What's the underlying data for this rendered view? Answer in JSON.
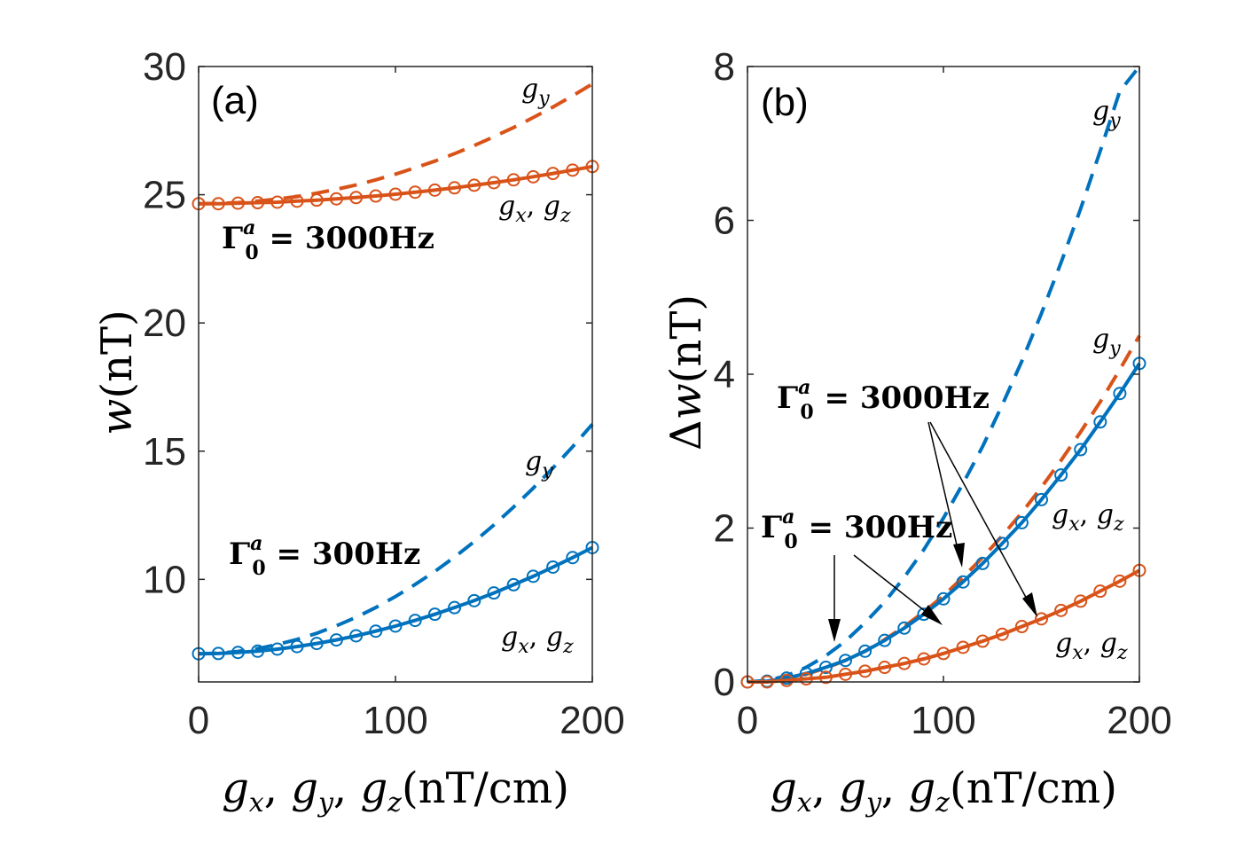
{
  "chart_data": [
    {
      "type": "line",
      "panel_label": "(a)",
      "xlabel": "g_x, g_y, g_z (nT/cm)",
      "ylabel": "w(nT)",
      "xlim": [
        0,
        200
      ],
      "ylim": [
        6,
        30
      ],
      "xticks": [
        0,
        100,
        200
      ],
      "yticks": [
        10,
        15,
        20,
        25,
        30
      ],
      "series": [
        {
          "group": "Γ0a = 3000Hz",
          "name": "g_y",
          "color": "#D95319",
          "style": "dashed",
          "x": [
            0,
            10,
            20,
            30,
            40,
            50,
            60,
            70,
            80,
            90,
            100,
            110,
            120,
            130,
            140,
            150,
            160,
            170,
            180,
            190,
            200
          ],
          "values": [
            24.65,
            24.66,
            24.69,
            24.75,
            24.83,
            24.93,
            25.06,
            25.21,
            25.38,
            25.58,
            25.8,
            26.05,
            26.31,
            26.6,
            26.92,
            27.26,
            27.62,
            28.01,
            28.42,
            28.86,
            29.32
          ]
        },
        {
          "group": "Γ0a = 3000Hz",
          "name": "g_x, g_z",
          "color": "#D95319",
          "style": "solid-markers",
          "x": [
            0,
            10,
            20,
            30,
            40,
            50,
            60,
            70,
            80,
            90,
            100,
            110,
            120,
            130,
            140,
            150,
            160,
            170,
            180,
            190,
            200
          ],
          "values": [
            24.65,
            24.65,
            24.67,
            24.69,
            24.71,
            24.75,
            24.79,
            24.84,
            24.89,
            24.95,
            25.02,
            25.1,
            25.18,
            25.27,
            25.37,
            25.47,
            25.58,
            25.7,
            25.83,
            25.96,
            26.1
          ]
        },
        {
          "group": "Γ0a = 300Hz",
          "name": "g_y",
          "color": "#0072BD",
          "style": "dashed",
          "x": [
            0,
            10,
            20,
            30,
            40,
            50,
            60,
            70,
            80,
            90,
            100,
            110,
            120,
            130,
            140,
            150,
            160,
            170,
            180,
            190,
            200
          ],
          "values": [
            7.1,
            7.12,
            7.19,
            7.3,
            7.46,
            7.66,
            7.9,
            8.19,
            8.52,
            8.9,
            9.33,
            9.8,
            10.31,
            10.87,
            11.47,
            12.12,
            12.82,
            13.56,
            14.34,
            15.17,
            16.05
          ]
        },
        {
          "group": "Γ0a = 300Hz",
          "name": "g_x, g_z",
          "color": "#0072BD",
          "style": "solid-markers",
          "x": [
            0,
            10,
            20,
            30,
            40,
            50,
            60,
            70,
            80,
            90,
            100,
            110,
            120,
            130,
            140,
            150,
            160,
            170,
            180,
            190,
            200
          ],
          "values": [
            7.1,
            7.11,
            7.15,
            7.2,
            7.28,
            7.38,
            7.5,
            7.64,
            7.8,
            7.98,
            8.18,
            8.4,
            8.64,
            8.9,
            9.17,
            9.47,
            9.79,
            10.12,
            10.48,
            10.85,
            11.24
          ]
        }
      ],
      "annotations": [
        {
          "text": "Γ0a = 3000Hz",
          "latex": "Γ_0^a = 3000Hz"
        },
        {
          "text": "Γ0a = 300Hz",
          "latex": "Γ_0^a = 300Hz"
        },
        {
          "text": "g_y"
        },
        {
          "text": "g_x, g_z"
        },
        {
          "text": "g_y"
        },
        {
          "text": "g_x, g_z"
        }
      ]
    },
    {
      "type": "line",
      "panel_label": "(b)",
      "xlabel": "g_x, g_y, g_z (nT/cm)",
      "ylabel": "Δw(nT)",
      "xlim": [
        0,
        200
      ],
      "ylim": [
        0,
        8
      ],
      "xticks": [
        0,
        100,
        200
      ],
      "yticks": [
        0,
        2,
        4,
        6,
        8
      ],
      "series": [
        {
          "group": "Γ0a = 300Hz",
          "name": "g_y",
          "color": "#0072BD",
          "style": "dashed",
          "x": [
            0,
            10,
            20,
            30,
            40,
            50,
            60,
            70,
            80,
            90,
            100,
            110,
            120,
            130,
            140,
            150,
            160,
            170,
            180,
            190,
            200
          ],
          "values": [
            0.0,
            0.02,
            0.08,
            0.19,
            0.34,
            0.53,
            0.77,
            1.04,
            1.36,
            1.72,
            2.13,
            2.58,
            3.06,
            3.6,
            4.17,
            4.79,
            5.45,
            6.15,
            6.9,
            7.68,
            8.52
          ]
        },
        {
          "group": "Γ0a = 3000Hz",
          "name": "g_y",
          "color": "#D95319",
          "style": "dashed",
          "x": [
            0,
            10,
            20,
            30,
            40,
            50,
            60,
            70,
            80,
            90,
            100,
            110,
            120,
            130,
            140,
            150,
            160,
            170,
            180,
            190,
            200
          ],
          "values": [
            0.0,
            0.01,
            0.04,
            0.1,
            0.18,
            0.28,
            0.4,
            0.55,
            0.72,
            0.91,
            1.12,
            1.36,
            1.62,
            1.9,
            2.2,
            2.53,
            2.88,
            3.25,
            3.64,
            4.06,
            4.5
          ]
        },
        {
          "group": "Γ0a = 300Hz",
          "name": "g_x, g_z",
          "color": "#0072BD",
          "style": "solid-markers",
          "x": [
            0,
            10,
            20,
            30,
            40,
            50,
            60,
            70,
            80,
            90,
            100,
            110,
            120,
            130,
            140,
            150,
            160,
            170,
            180,
            190,
            200
          ],
          "values": [
            0.0,
            0.01,
            0.05,
            0.11,
            0.19,
            0.28,
            0.4,
            0.54,
            0.7,
            0.88,
            1.08,
            1.3,
            1.54,
            1.8,
            2.07,
            2.37,
            2.69,
            3.02,
            3.38,
            3.75,
            4.14
          ]
        },
        {
          "group": "Γ0a = 3000Hz",
          "name": "g_x, g_z",
          "color": "#D95319",
          "style": "solid-markers",
          "x": [
            0,
            10,
            20,
            30,
            40,
            50,
            60,
            70,
            80,
            90,
            100,
            110,
            120,
            130,
            140,
            150,
            160,
            170,
            180,
            190,
            200
          ],
          "values": [
            0.0,
            0.0,
            0.02,
            0.04,
            0.06,
            0.1,
            0.14,
            0.19,
            0.24,
            0.3,
            0.37,
            0.45,
            0.53,
            0.62,
            0.72,
            0.82,
            0.93,
            1.05,
            1.18,
            1.31,
            1.45
          ]
        }
      ],
      "annotations": [
        {
          "text": "Γ0a = 3000Hz",
          "latex": "Γ_0^a = 3000Hz"
        },
        {
          "text": "Γ0a = 300Hz",
          "latex": "Γ_0^a = 300Hz"
        },
        {
          "text": "g_y"
        },
        {
          "text": "g_y"
        },
        {
          "text": "g_x, g_z"
        },
        {
          "text": "g_x, g_z"
        }
      ]
    }
  ]
}
